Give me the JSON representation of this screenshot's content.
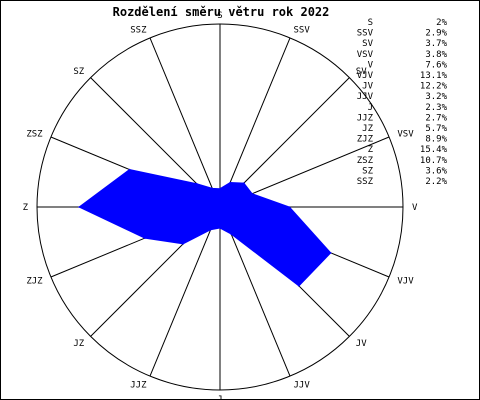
{
  "chart_data": {
    "type": "radar",
    "title": "Rozdělení směru větru rok 2022",
    "directions": [
      "S",
      "SSV",
      "SV",
      "VSV",
      "V",
      "VJV",
      "JV",
      "JJV",
      "J",
      "JJZ",
      "JZ",
      "ZJZ",
      "Z",
      "ZSZ",
      "SZ",
      "SSZ"
    ],
    "values": [
      2,
      2.9,
      3.7,
      3.8,
      7.6,
      13.1,
      12.2,
      3.2,
      2.3,
      2.7,
      5.7,
      8.9,
      15.4,
      10.7,
      3.6,
      2.2
    ],
    "value_labels": [
      "2%",
      "2.9%",
      "3.7%",
      "3.8%",
      "7.6%",
      "13.1%",
      "12.2%",
      "3.2%",
      "2.3%",
      "2.7%",
      "5.7%",
      "8.9%",
      "15.4%",
      "10.7%",
      "3.6%",
      "2.2%"
    ],
    "unit": "%",
    "rmax": 20,
    "fill_color": "#0000ff",
    "grid": true,
    "legend_position": "top-right"
  }
}
